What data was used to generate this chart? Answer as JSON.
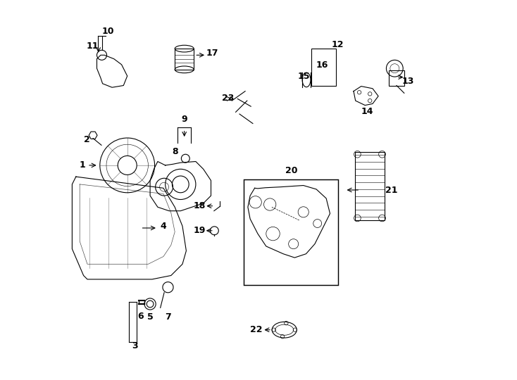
{
  "background_color": "#ffffff",
  "line_color": "#000000",
  "lw": 0.8
}
